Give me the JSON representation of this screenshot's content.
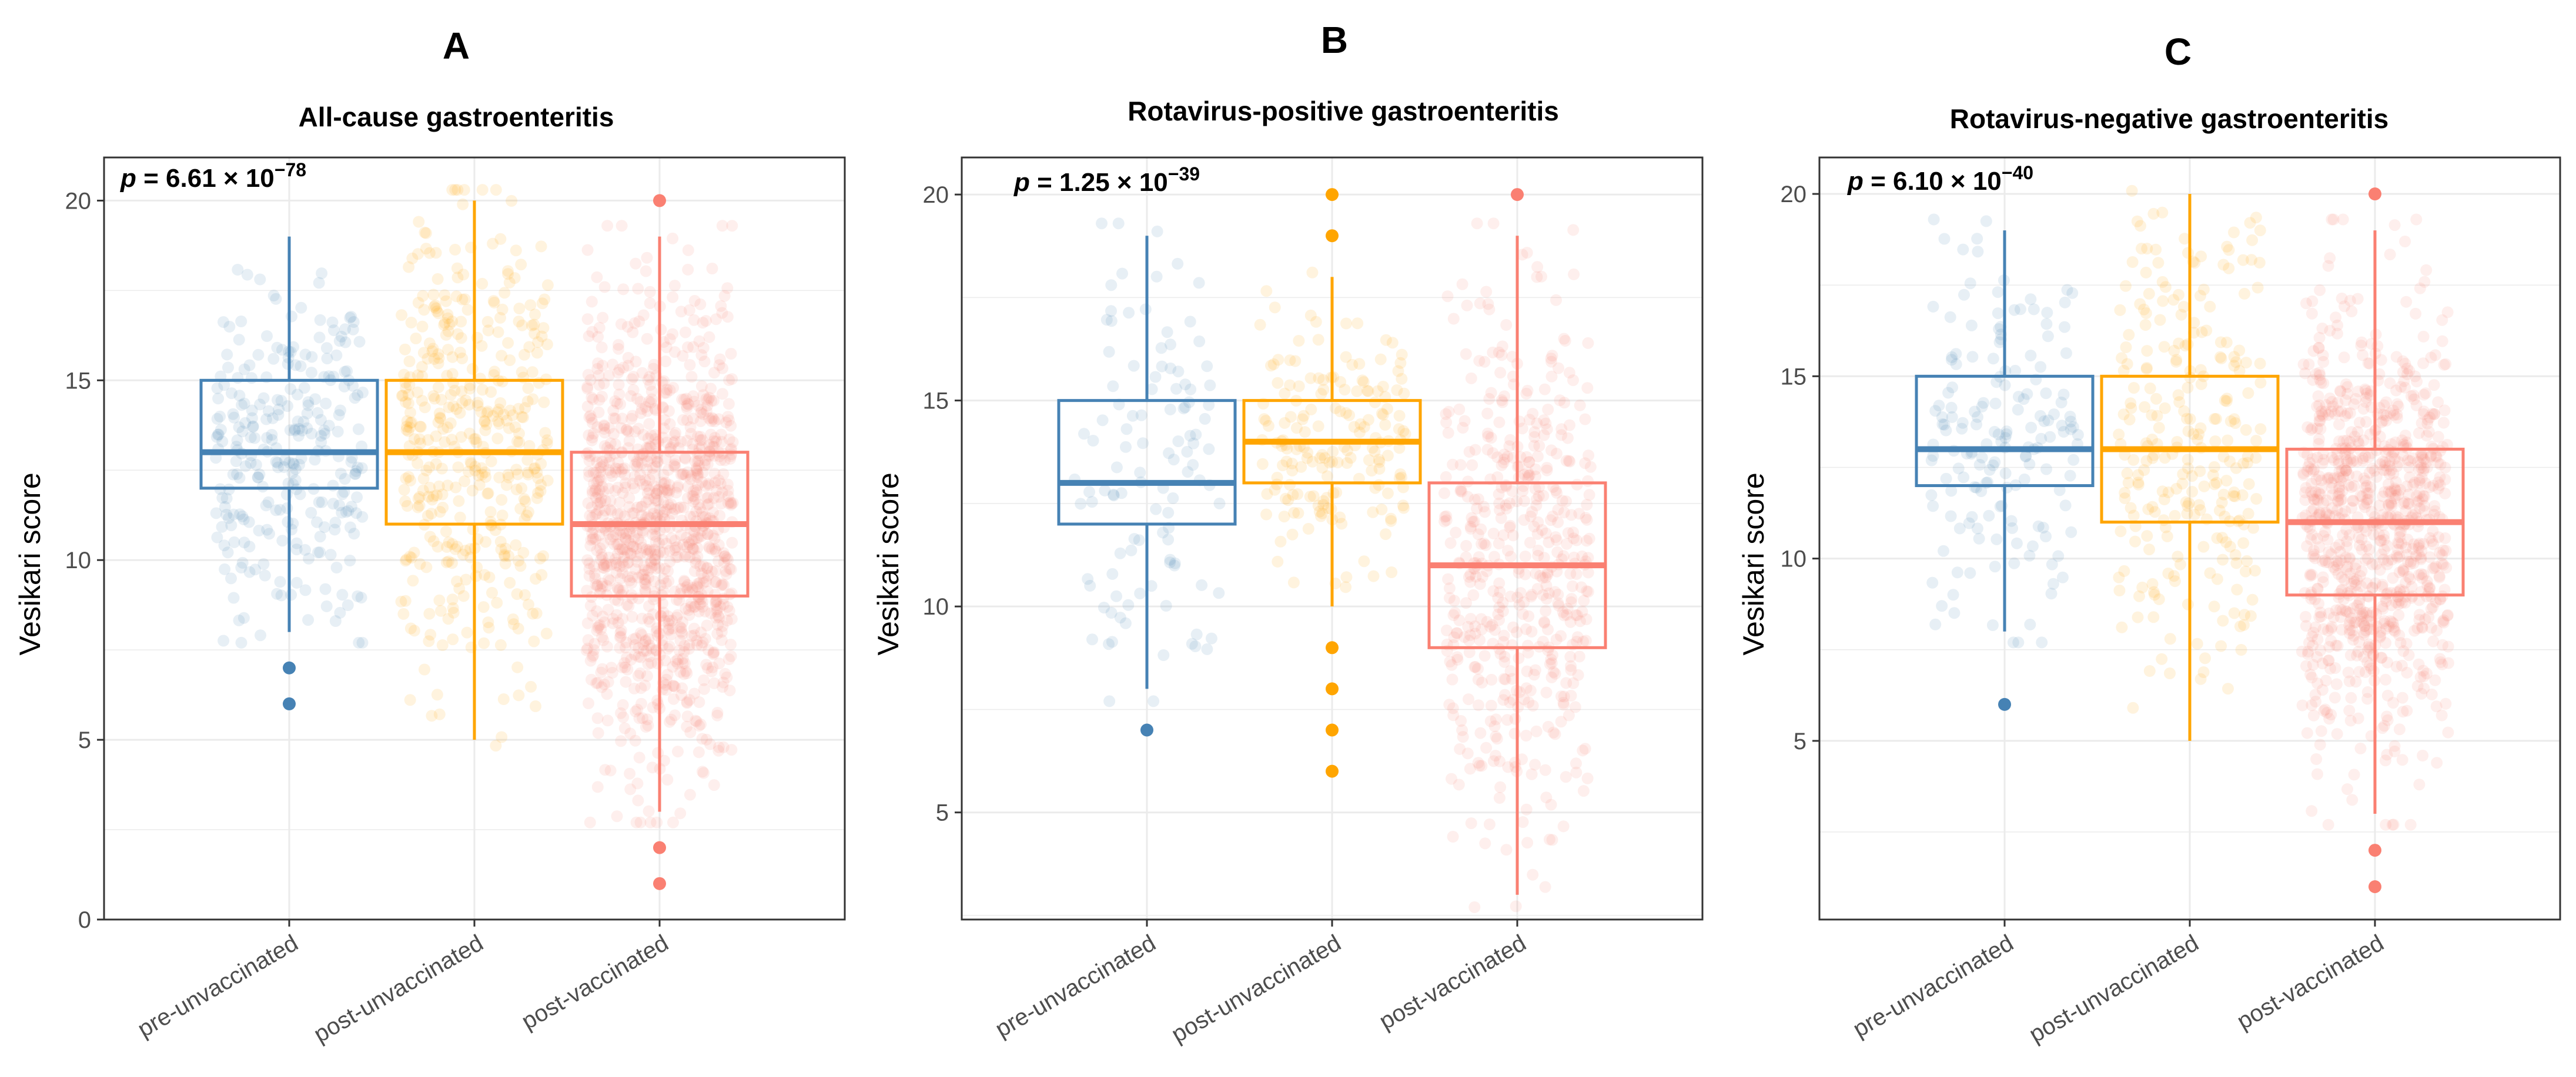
{
  "figure": {
    "y_axis_label": "Vesikari score",
    "colors": {
      "pre-unvaccinated": "#4682B4",
      "post-unvaccinated": "#FFA500",
      "post-vaccinated": "#FA8072",
      "grid": "#EBEBEB",
      "frame": "#333333",
      "tick_text": "#4d4d4d"
    }
  },
  "chart_data": [
    {
      "type": "box",
      "panel_letter": "A",
      "title": "All-cause gastroenteritis",
      "pvalue": {
        "prefix": "p",
        "mantissa": " = 6.61 × 10",
        "exponent": "−78"
      },
      "ylabel": "Vesikari score",
      "ylim": [
        0,
        21.2
      ],
      "yticks": [
        0,
        5,
        10,
        15,
        20
      ],
      "yticklabels": [
        "0",
        "5",
        "10",
        "15",
        "20"
      ],
      "categories": [
        "pre-unvaccinated",
        "post-unvaccinated",
        "post-vaccinated"
      ],
      "boxes": [
        {
          "group": "pre-unvaccinated",
          "q1": 12,
          "median": 13,
          "q3": 15,
          "whisker_low": 8,
          "whisker_high": 19,
          "outliers": [
            7,
            6
          ],
          "jitter_n": 280
        },
        {
          "group": "post-unvaccinated",
          "q1": 11,
          "median": 13,
          "q3": 15,
          "whisker_low": 5,
          "whisker_high": 20,
          "outliers": [],
          "jitter_n": 420
        },
        {
          "group": "post-vaccinated",
          "q1": 9,
          "median": 11,
          "q3": 13,
          "whisker_low": 3,
          "whisker_high": 19,
          "outliers": [
            20,
            2,
            1
          ],
          "jitter_n": 1100
        }
      ]
    },
    {
      "type": "box",
      "panel_letter": "B",
      "title": "Rotavirus-positive gastroenteritis",
      "pvalue": {
        "prefix": "p",
        "mantissa": " = 1.25 × 10",
        "exponent": "−39"
      },
      "ylabel": "Vesikari score",
      "ylim": [
        2.4,
        20.9
      ],
      "yticks": [
        5,
        10,
        15,
        20
      ],
      "yticklabels": [
        "5",
        "10",
        "15",
        "20"
      ],
      "categories": [
        "pre-unvaccinated",
        "post-unvaccinated",
        "post-vaccinated"
      ],
      "boxes": [
        {
          "group": "pre-unvaccinated",
          "q1": 12,
          "median": 13,
          "q3": 15,
          "whisker_low": 8,
          "whisker_high": 19,
          "outliers": [
            7
          ],
          "jitter_n": 110
        },
        {
          "group": "post-unvaccinated",
          "q1": 13,
          "median": 14,
          "q3": 15,
          "whisker_low": 10,
          "whisker_high": 18,
          "outliers": [
            20,
            19,
            9,
            8,
            7,
            6
          ],
          "jitter_n": 180
        },
        {
          "group": "post-vaccinated",
          "q1": 9,
          "median": 11,
          "q3": 13,
          "whisker_low": 3,
          "whisker_high": 19,
          "outliers": [
            20
          ],
          "jitter_n": 500
        }
      ]
    },
    {
      "type": "box",
      "panel_letter": "C",
      "title": "Rotavirus-negative gastroenteritis",
      "pvalue": {
        "prefix": "p",
        "mantissa": " = 6.10 × 10",
        "exponent": "−40"
      },
      "ylabel": "Vesikari score",
      "ylim": [
        0.1,
        21.0
      ],
      "yticks": [
        5,
        10,
        15,
        20
      ],
      "yticklabels": [
        "5",
        "10",
        "15",
        "20"
      ],
      "categories": [
        "pre-unvaccinated",
        "post-unvaccinated",
        "post-vaccinated"
      ],
      "boxes": [
        {
          "group": "pre-unvaccinated",
          "q1": 12,
          "median": 13,
          "q3": 15,
          "whisker_low": 8,
          "whisker_high": 19,
          "outliers": [
            6
          ],
          "jitter_n": 170
        },
        {
          "group": "post-unvaccinated",
          "q1": 11,
          "median": 13,
          "q3": 15,
          "whisker_low": 5,
          "whisker_high": 20,
          "outliers": [],
          "jitter_n": 260
        },
        {
          "group": "post-vaccinated",
          "q1": 9,
          "median": 11,
          "q3": 13,
          "whisker_low": 3,
          "whisker_high": 19,
          "outliers": [
            20,
            2,
            1
          ],
          "jitter_n": 900
        }
      ]
    }
  ]
}
